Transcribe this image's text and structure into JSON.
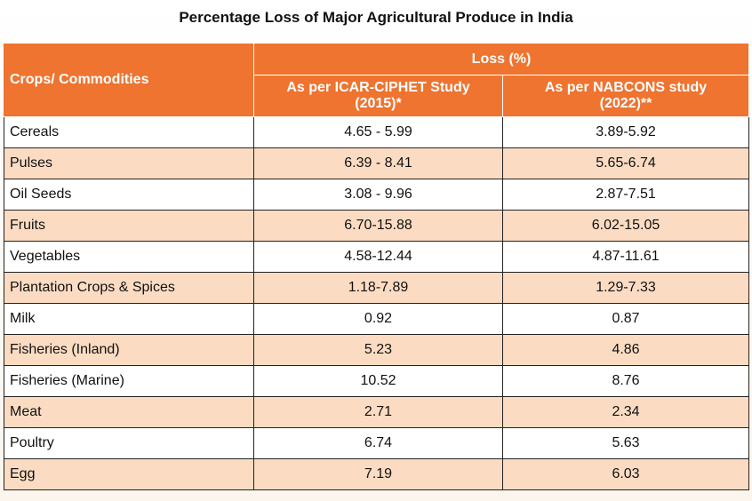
{
  "title": "Percentage Loss of Major Agricultural Produce in India",
  "table": {
    "headers": {
      "crops": "Crops/ Commodities",
      "loss": "Loss (%)",
      "icar_line1": "As per ICAR-CIPHET Study",
      "icar_line2": "(2015)*",
      "nabcons_line1": "As per NABCONS study",
      "nabcons_line2": "(2022)**"
    },
    "rows": [
      {
        "crop": "Cereals",
        "icar": "4.65 - 5.99",
        "nabcons": "3.89-5.92"
      },
      {
        "crop": "Pulses",
        "icar": "6.39 - 8.41",
        "nabcons": "5.65-6.74"
      },
      {
        "crop": "Oil Seeds",
        "icar": "3.08 - 9.96",
        "nabcons": "2.87-7.51"
      },
      {
        "crop": "Fruits",
        "icar": "6.70-15.88",
        "nabcons": "6.02-15.05"
      },
      {
        "crop": "Vegetables",
        "icar": "4.58-12.44",
        "nabcons": "4.87-11.61"
      },
      {
        "crop": "Plantation Crops & Spices",
        "icar": "1.18-7.89",
        "nabcons": "1.29-7.33"
      },
      {
        "crop": "Milk",
        "icar": "0.92",
        "nabcons": "0.87"
      },
      {
        "crop": "Fisheries (Inland)",
        "icar": "5.23",
        "nabcons": "4.86"
      },
      {
        "crop": "Fisheries (Marine)",
        "icar": "10.52",
        "nabcons": "8.76"
      },
      {
        "crop": "Meat",
        "icar": "2.71",
        "nabcons": "2.34"
      },
      {
        "crop": "Poultry",
        "icar": "6.74",
        "nabcons": "5.63"
      },
      {
        "crop": "Egg",
        "icar": "7.19",
        "nabcons": "6.03"
      }
    ]
  },
  "colors": {
    "header_bg": "#ee7430",
    "row_alt_bg": "#fbdcc3",
    "row_bg": "#ffffff"
  }
}
